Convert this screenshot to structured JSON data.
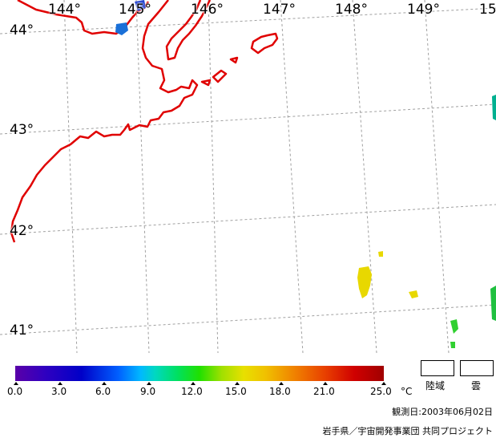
{
  "map": {
    "longitude_labels": [
      "144°",
      "145°",
      "146°",
      "147°",
      "148°",
      "149°",
      "15"
    ],
    "latitude_labels": [
      "44°",
      "43°",
      "42°",
      "41°"
    ],
    "coastline_color": "#e00000",
    "grid_color": "#a0a0a0"
  },
  "legend": {
    "ticks": [
      "0.0",
      "3.0",
      "6.0",
      "9.0",
      "12.0",
      "15.0",
      "18.0",
      "21.0",
      "25.0"
    ],
    "unit": "°C",
    "land_label": "陸域",
    "cloud_label": "雲"
  },
  "footer": {
    "observation_date": "観測日:2003年06月02日",
    "credit": "岩手県／宇宙開発事業団 共同プロジェクト"
  }
}
